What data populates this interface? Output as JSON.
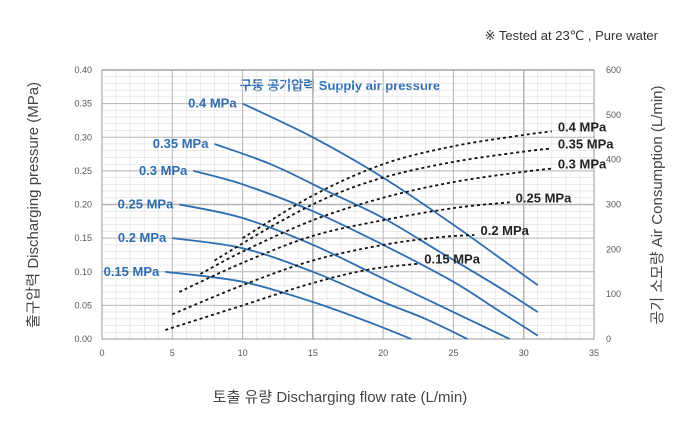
{
  "header": {
    "note": "※  Tested at  23℃ , Pure water"
  },
  "chart_data": {
    "type": "line",
    "subtitle": "구동 공기압력 Supply air pressure",
    "xlabel": "토출 유량 Discharging flow rate (L/min)",
    "ylabel_left": "출구압력 Discharging pressure (MPa)",
    "ylabel_right": "공기 소모량 Air Consumption (L/min)",
    "xlim": [
      0,
      35
    ],
    "ylim_left": [
      0,
      0.4
    ],
    "ylim_right": [
      0,
      600
    ],
    "x_ticks": [
      "0",
      "5",
      "10",
      "15",
      "20",
      "25",
      "30",
      "35"
    ],
    "y_left_ticks": [
      "0.00",
      "0.05",
      "0.10",
      "0.15",
      "0.20",
      "0.25",
      "0.30",
      "0.35",
      "0.40"
    ],
    "y_right_ticks": [
      "0",
      "100",
      "200",
      "300",
      "400",
      "500",
      "600"
    ],
    "grid": true,
    "colors": {
      "pressure": "#2e6db0",
      "air": "#111111",
      "grid": "#b5b5b5",
      "major_grid": "#9a9a9a"
    },
    "pressure_series": [
      {
        "name": "0.4 MPa",
        "x": [
          10,
          15,
          20,
          25,
          28,
          31
        ],
        "y": [
          0.35,
          0.3,
          0.24,
          0.17,
          0.125,
          0.08
        ]
      },
      {
        "name": "0.35 MPa",
        "x": [
          8,
          12,
          16,
          20,
          24,
          28,
          31
        ],
        "y": [
          0.29,
          0.26,
          0.22,
          0.18,
          0.13,
          0.08,
          0.04
        ]
      },
      {
        "name": "0.3 MPa",
        "x": [
          6.5,
          10,
          15,
          20,
          25,
          28,
          31
        ],
        "y": [
          0.25,
          0.23,
          0.19,
          0.14,
          0.085,
          0.045,
          0.005
        ]
      },
      {
        "name": "0.25 MPa",
        "x": [
          5.5,
          10,
          15,
          20,
          25,
          29
        ],
        "y": [
          0.2,
          0.18,
          0.14,
          0.09,
          0.04,
          0.0
        ]
      },
      {
        "name": "0.2 MPa",
        "x": [
          5,
          10,
          15,
          20,
          23,
          26
        ],
        "y": [
          0.15,
          0.135,
          0.1,
          0.055,
          0.03,
          0.0
        ]
      },
      {
        "name": "0.15 MPa",
        "x": [
          4.5,
          10,
          15,
          19,
          22
        ],
        "y": [
          0.1,
          0.085,
          0.055,
          0.025,
          0.0
        ]
      }
    ],
    "air_series": [
      {
        "name": "0.4 MPa",
        "x": [
          10,
          15,
          20,
          25,
          30,
          32
        ],
        "y": [
          225,
          320,
          390,
          430,
          455,
          463
        ]
      },
      {
        "name": "0.35 MPa",
        "x": [
          8,
          12,
          16,
          20,
          25,
          30,
          32
        ],
        "y": [
          175,
          250,
          315,
          360,
          395,
          418,
          425
        ]
      },
      {
        "name": "0.3 MPa",
        "x": [
          7,
          10,
          15,
          20,
          25,
          30,
          32
        ],
        "y": [
          145,
          195,
          265,
          315,
          350,
          373,
          380
        ]
      },
      {
        "name": "0.25 MPa",
        "x": [
          5.5,
          10,
          15,
          20,
          25,
          29
        ],
        "y": [
          105,
          170,
          230,
          265,
          292,
          305
        ]
      },
      {
        "name": "0.2 MPa",
        "x": [
          5,
          10,
          15,
          20,
          24,
          26.5
        ],
        "y": [
          55,
          120,
          175,
          210,
          227,
          232
        ]
      },
      {
        "name": "0.15 MPa",
        "x": [
          4.5,
          10,
          15,
          19,
          22.5
        ],
        "y": [
          20,
          75,
          125,
          155,
          168
        ]
      }
    ]
  }
}
